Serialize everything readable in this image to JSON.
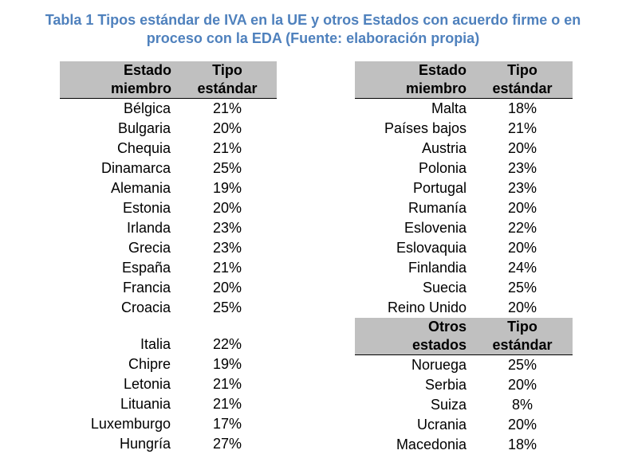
{
  "title": {
    "line1": "Tabla 1 Tipos estándar de IVA en la UE y otros Estados con acuerdo firme o en",
    "line2": "proceso con la EDA (Fuente: elaboración propia)"
  },
  "left_table": {
    "header": {
      "col1": "Estado miembro",
      "col2": "Tipo estándar"
    },
    "rows_a": [
      {
        "name": "Bélgica",
        "rate": "21%"
      },
      {
        "name": "Bulgaria",
        "rate": "20%"
      },
      {
        "name": "Chequia",
        "rate": "21%"
      },
      {
        "name": "Dinamarca",
        "rate": "25%"
      },
      {
        "name": "Alemania",
        "rate": "19%"
      },
      {
        "name": "Estonia",
        "rate": "20%"
      },
      {
        "name": "Irlanda",
        "rate": "23%"
      },
      {
        "name": "Grecia",
        "rate": "23%"
      },
      {
        "name": "España",
        "rate": "21%"
      },
      {
        "name": "Francia",
        "rate": "20%"
      },
      {
        "name": "Croacia",
        "rate": "25%"
      }
    ],
    "rows_b": [
      {
        "name": "Italia",
        "rate": "22%"
      },
      {
        "name": "Chipre",
        "rate": "19%"
      },
      {
        "name": "Letonia",
        "rate": "21%"
      },
      {
        "name": "Lituania",
        "rate": "21%"
      },
      {
        "name": "Luxemburgo",
        "rate": "17%"
      },
      {
        "name": "Hungría",
        "rate": "27%"
      }
    ]
  },
  "right_table": {
    "header": {
      "col1": "Estado miembro",
      "col2": "Tipo estándar"
    },
    "rows": [
      {
        "name": "Malta",
        "rate": "18%"
      },
      {
        "name": "Países bajos",
        "rate": "21%"
      },
      {
        "name": "Austria",
        "rate": "20%"
      },
      {
        "name": "Polonia",
        "rate": "23%"
      },
      {
        "name": "Portugal",
        "rate": "23%"
      },
      {
        "name": "Rumanía",
        "rate": "20%"
      },
      {
        "name": "Eslovenia",
        "rate": "22%"
      },
      {
        "name": "Eslovaquia",
        "rate": "20%"
      },
      {
        "name": "Finlandia",
        "rate": "24%"
      },
      {
        "name": "Suecia",
        "rate": "25%"
      },
      {
        "name": "Reino Unido",
        "rate": "20%"
      }
    ]
  },
  "other_table": {
    "header": {
      "col1": "Otros estados",
      "col2": "Tipo estándar"
    },
    "rows": [
      {
        "name": "Noruega",
        "rate": "25%"
      },
      {
        "name": "Serbia",
        "rate": "20%"
      },
      {
        "name": "Suiza",
        "rate": "8%"
      },
      {
        "name": "Ucrania",
        "rate": "20%"
      },
      {
        "name": "Macedonia",
        "rate": "18%"
      }
    ]
  }
}
